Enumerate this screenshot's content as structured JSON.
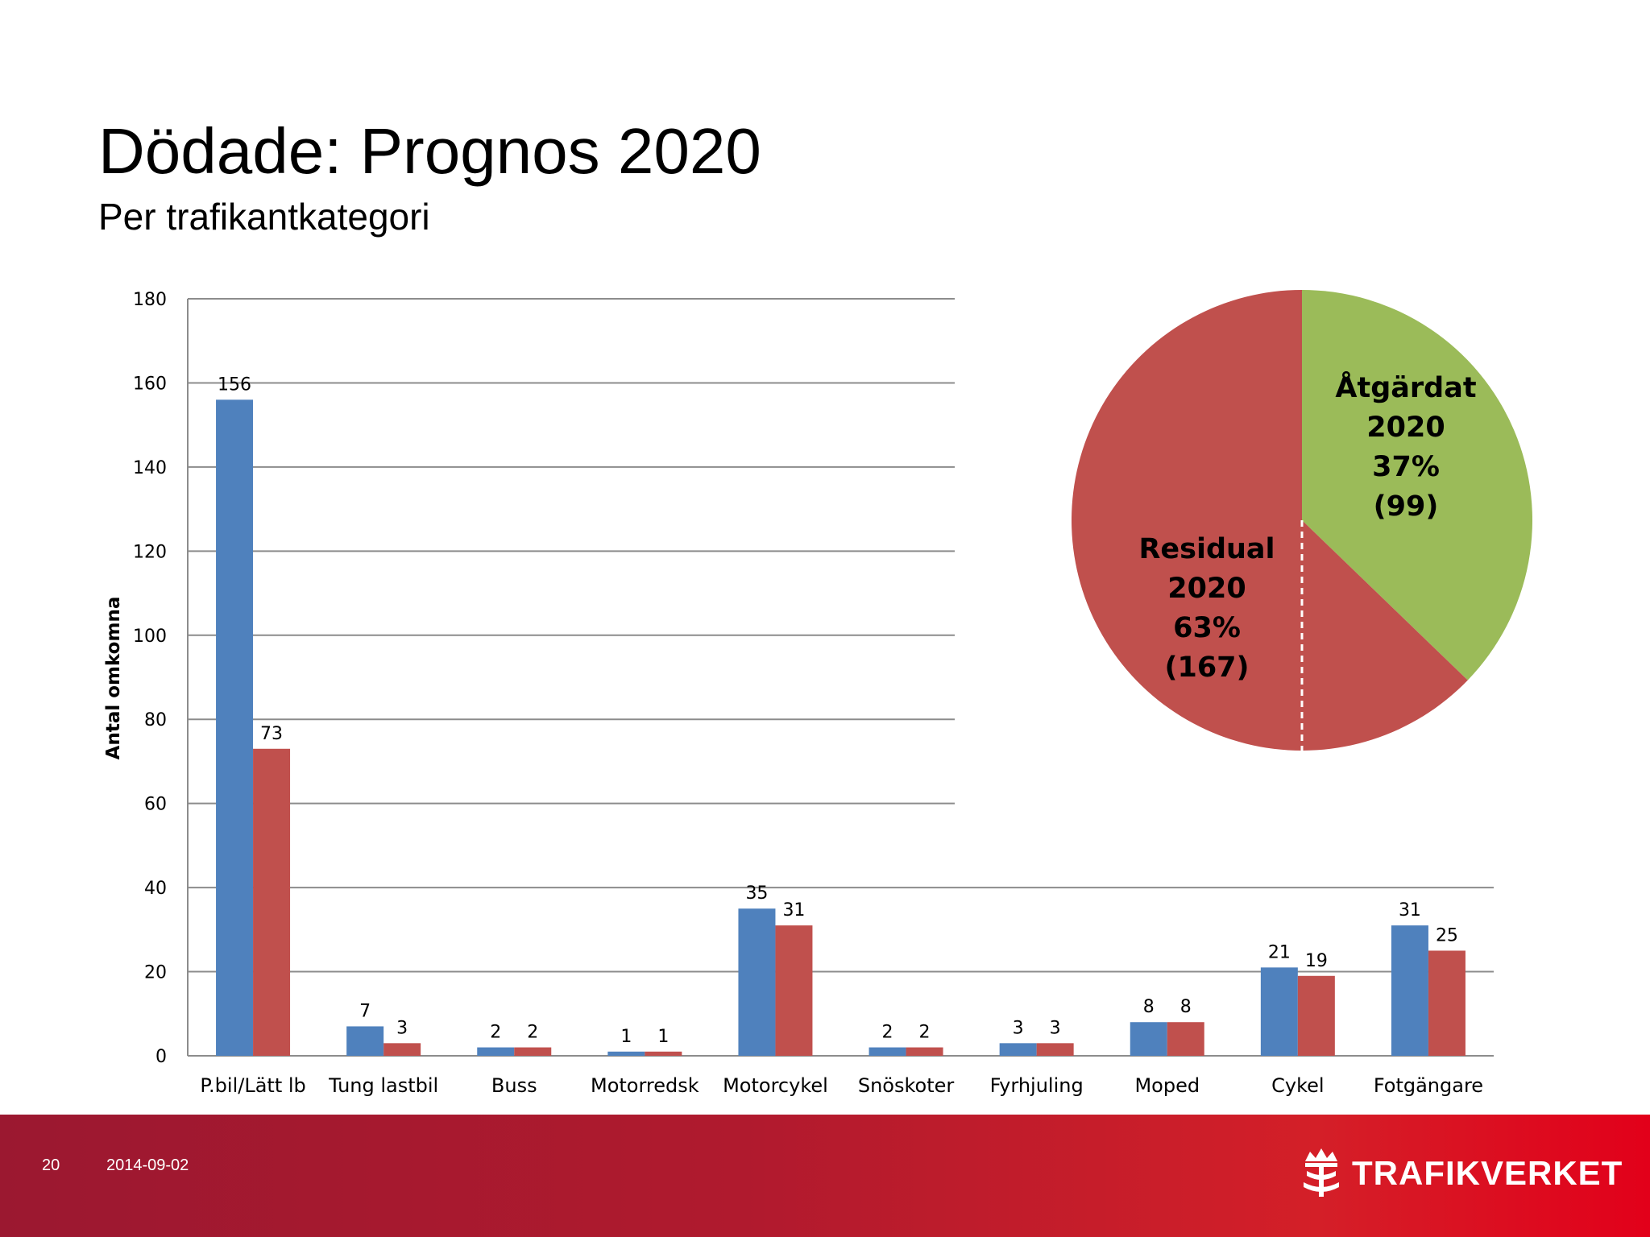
{
  "slide": {
    "title": "Dödade: Prognos 2020",
    "subtitle": "Per trafikantkategori",
    "page_number": "20",
    "date": "2014-09-02",
    "logo_text": "TRAFIKVERKET",
    "logo_icon": "crown-emblem-icon"
  },
  "colors": {
    "series_blue": "#4f81bd",
    "series_red": "#c0504d",
    "pie_green": "#9bbb59",
    "pie_red": "#c0504d",
    "footer_red": "#c4172c"
  },
  "chart_data": [
    {
      "type": "bar",
      "categories": [
        "P.bil/Lätt lb",
        "Tung lastbil",
        "Buss",
        "Motorredsk",
        "Motorcykel",
        "Snöskoter",
        "Fyrhjuling",
        "Moped",
        "Cykel",
        "Fotgängare"
      ],
      "series": [
        {
          "values": [
            156,
            7,
            2,
            1,
            35,
            2,
            3,
            8,
            21,
            31
          ]
        },
        {
          "values": [
            73,
            3,
            2,
            1,
            31,
            2,
            3,
            8,
            19,
            25
          ]
        }
      ],
      "ylabel": "Antal omkomna",
      "xlabel": "",
      "ylim": [
        0,
        180
      ],
      "yticks": [
        0,
        20,
        40,
        60,
        80,
        100,
        120,
        140,
        160,
        180
      ],
      "grid": true,
      "data_labels": true
    },
    {
      "type": "pie",
      "slices": [
        {
          "label_lines": [
            "Åtgärdat",
            "2020",
            "37%",
            "(99)"
          ],
          "value": 99,
          "percent": 37
        },
        {
          "label_lines": [
            "Residual",
            "2020",
            "63%",
            "(167)"
          ],
          "value": 167,
          "percent": 63
        }
      ]
    }
  ]
}
